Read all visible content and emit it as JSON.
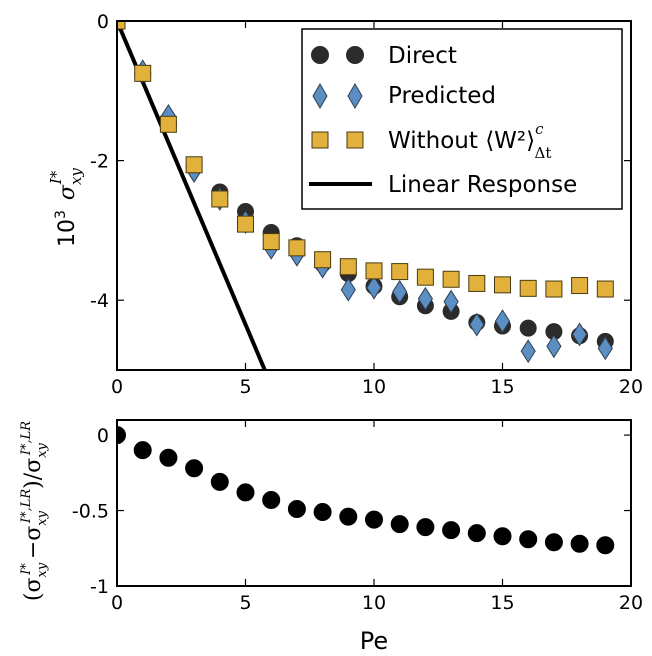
{
  "chart_data": [
    {
      "type": "scatter",
      "ylabel_prefix": "10",
      "ylabel_exp": "3",
      "ylabel_symbol": "σ",
      "ylabel_sub": "xy",
      "ylabel_sup": "I*",
      "xlim": [
        0,
        20
      ],
      "ylim": [
        -5,
        0
      ],
      "xticks": [
        0,
        5,
        10,
        15,
        20
      ],
      "yticks": [
        0,
        -2,
        -4
      ],
      "ytick_labels": [
        "0",
        "-2",
        "-4"
      ],
      "legend_position": "top-right",
      "series": [
        {
          "name": "Direct",
          "marker": "circle",
          "color": "#2b2b2b",
          "x": [
            0,
            1,
            2,
            3,
            4,
            5,
            6,
            7,
            8,
            9,
            10,
            11,
            12,
            13,
            14,
            15,
            16,
            17,
            18,
            19
          ],
          "y": [
            0,
            -0.76,
            -1.46,
            -2.08,
            -2.45,
            -2.73,
            -3.03,
            -3.22,
            -3.48,
            -3.62,
            -3.8,
            -3.95,
            -4.08,
            -4.16,
            -4.32,
            -4.37,
            -4.4,
            -4.45,
            -4.51,
            -4.59
          ]
        },
        {
          "name": "Predicted",
          "marker": "diamond",
          "color": "#5b8fc4",
          "x": [
            0,
            1,
            2,
            3,
            4,
            5,
            6,
            7,
            8,
            9,
            10,
            11,
            12,
            13,
            14,
            15,
            16,
            17,
            18,
            19
          ],
          "y": [
            0,
            -0.72,
            -1.36,
            -2.15,
            -2.55,
            -2.88,
            -3.25,
            -3.35,
            -3.52,
            -3.85,
            -3.82,
            -3.88,
            -3.98,
            -4.02,
            -4.35,
            -4.3,
            -4.73,
            -4.66,
            -4.49,
            -4.69
          ]
        },
        {
          "name": "Without ⟨W²⟩",
          "name_sup": "c",
          "name_sub": "Δt",
          "marker": "square",
          "color": "#e2b13c",
          "x": [
            0,
            1,
            2,
            3,
            4,
            5,
            6,
            7,
            8,
            9,
            10,
            11,
            12,
            13,
            14,
            15,
            16,
            17,
            18,
            19
          ],
          "y": [
            0,
            -0.75,
            -1.48,
            -2.06,
            -2.55,
            -2.91,
            -3.16,
            -3.25,
            -3.42,
            -3.52,
            -3.58,
            -3.59,
            -3.67,
            -3.7,
            -3.76,
            -3.78,
            -3.83,
            -3.84,
            -3.79,
            -3.84
          ]
        },
        {
          "name": "Linear Response",
          "marker": "line",
          "color": "#000000",
          "x": [
            0,
            5.75
          ],
          "y": [
            0,
            -5
          ]
        }
      ]
    },
    {
      "type": "scatter",
      "xlabel": "Pe",
      "ylabel": "(σ",
      "xlim": [
        0,
        20
      ],
      "ylim": [
        -1,
        0.1
      ],
      "xticks": [
        0,
        5,
        10,
        15,
        20
      ],
      "yticks": [
        0,
        -0.5,
        -1
      ],
      "ytick_labels": [
        "0",
        "-0.5",
        "-1"
      ],
      "series": [
        {
          "marker": "circle",
          "color": "#000000",
          "x": [
            0,
            1,
            2,
            3,
            4,
            5,
            6,
            7,
            8,
            9,
            10,
            11,
            12,
            13,
            14,
            15,
            16,
            17,
            18,
            19
          ],
          "y": [
            0,
            -0.1,
            -0.15,
            -0.22,
            -0.31,
            -0.38,
            -0.43,
            -0.49,
            -0.51,
            -0.54,
            -0.56,
            -0.59,
            -0.61,
            -0.63,
            -0.65,
            -0.67,
            -0.69,
            -0.71,
            -0.72,
            -0.73
          ]
        }
      ]
    }
  ]
}
